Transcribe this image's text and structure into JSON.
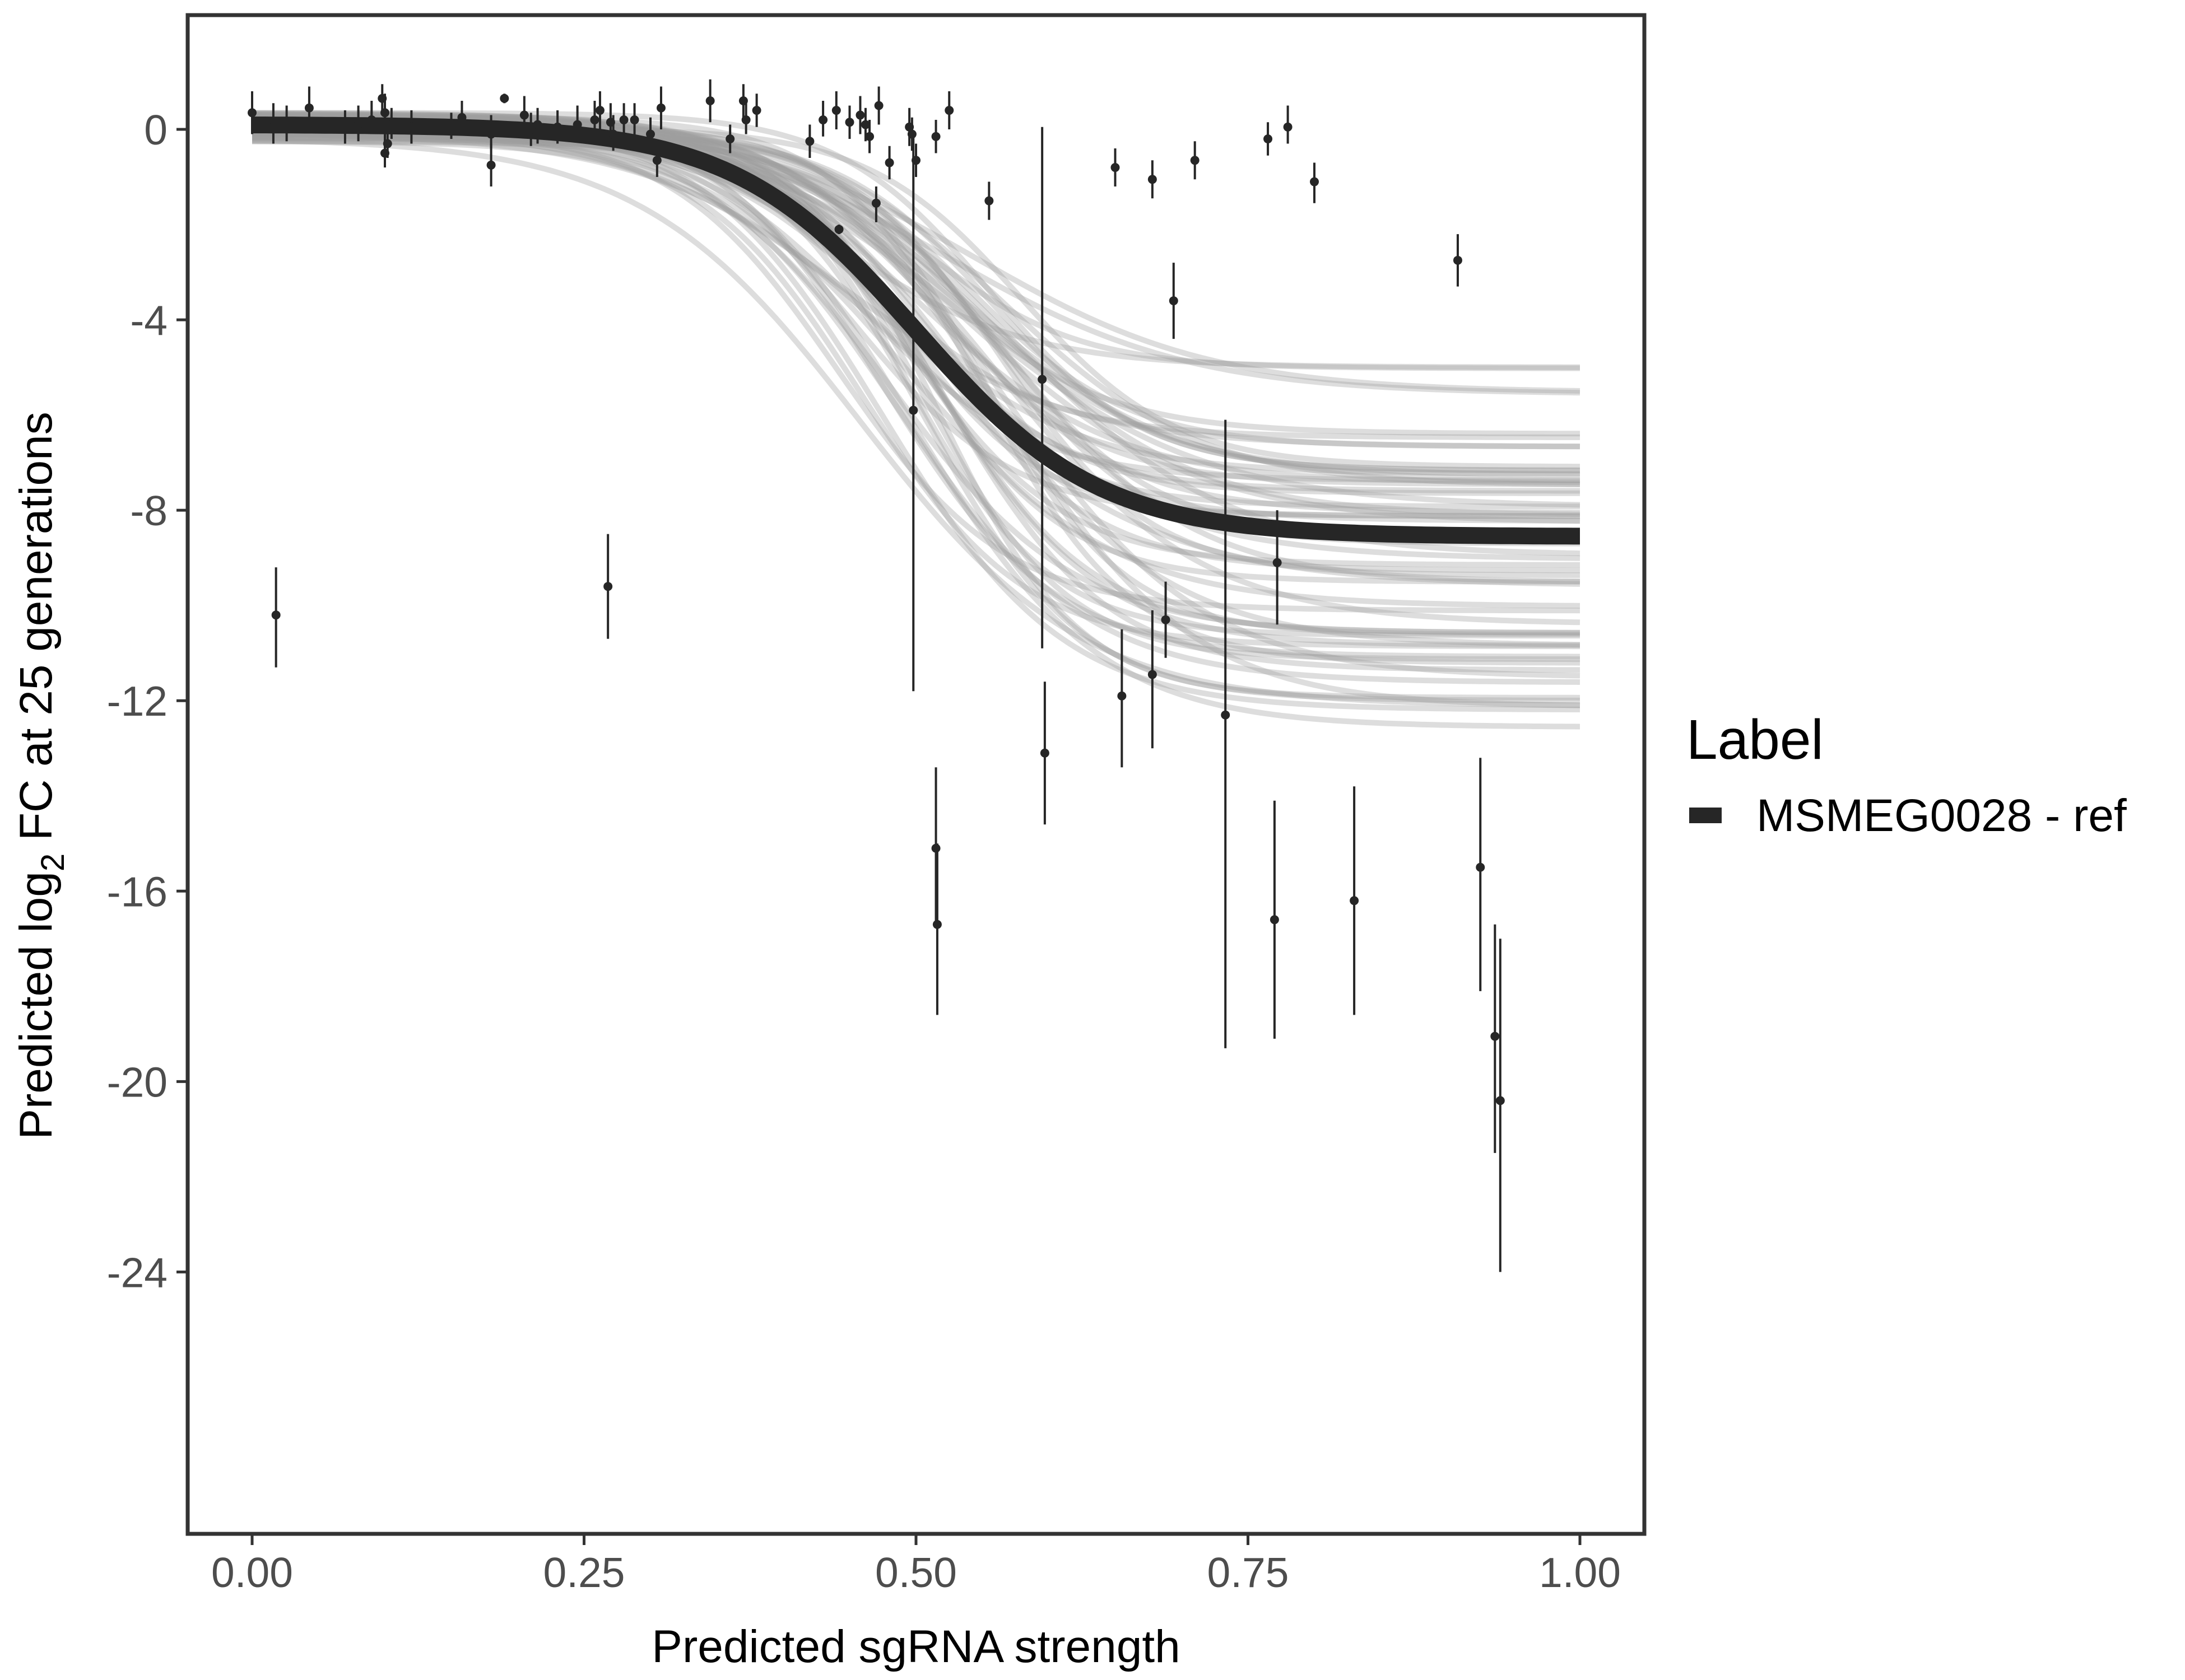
{
  "chart_data": {
    "type": "scatter",
    "xlabel": "Predicted sgRNA strength",
    "ylabel_parts": {
      "prefix": "Predicted  log",
      "subscript": "2",
      "suffix": " FC at 25 generations"
    },
    "xlim": [
      0,
      1
    ],
    "ylim": [
      -29.5,
      2.4
    ],
    "x_ticks": [
      "0.00",
      "0.25",
      "0.50",
      "0.75",
      "1.00"
    ],
    "y_ticks": [
      "0",
      "-4",
      "-8",
      "-12",
      "-16",
      "-20",
      "-24"
    ],
    "grid": false,
    "legend": {
      "title": "Label",
      "entries": [
        "MSMEG0028 - ref"
      ],
      "position": "right"
    },
    "fit_curve": {
      "name": "MSMEG0028 - ref",
      "upper": 0.1,
      "lower": -8.55,
      "midpoint": 0.5,
      "steepness": 14.5,
      "x_range": [
        0,
        1
      ]
    },
    "posterior_draws": {
      "count": 60,
      "lower_range": [
        -12.9,
        -4.8
      ],
      "midpoint_range": [
        0.44,
        0.58
      ],
      "steepness_range": [
        11,
        19
      ],
      "color": "#9e9e9e"
    },
    "points": [
      {
        "x": 0.0,
        "y": 0.35,
        "ylow": -0.1,
        "yhigh": 0.8
      },
      {
        "x": 0.016,
        "y": 0.05,
        "ylow": -0.3,
        "yhigh": 0.55
      },
      {
        "x": 0.018,
        "y": -10.2,
        "ylow": -11.3,
        "yhigh": -9.2
      },
      {
        "x": 0.026,
        "y": 0.1,
        "ylow": -0.25,
        "yhigh": 0.5
      },
      {
        "x": 0.043,
        "y": 0.45,
        "ylow": 0.1,
        "yhigh": 0.9
      },
      {
        "x": 0.07,
        "y": 0.05,
        "ylow": -0.3,
        "yhigh": 0.4
      },
      {
        "x": 0.08,
        "y": 0.1,
        "ylow": -0.25,
        "yhigh": 0.5
      },
      {
        "x": 0.09,
        "y": 0.2,
        "ylow": -0.1,
        "yhigh": 0.6
      },
      {
        "x": 0.098,
        "y": 0.65,
        "ylow": 0.35,
        "yhigh": 0.95
      },
      {
        "x": 0.1,
        "y": -0.5,
        "ylow": -0.8,
        "yhigh": -0.1
      },
      {
        "x": 0.1,
        "y": 0.35,
        "ylow": 0.0,
        "yhigh": 0.75
      },
      {
        "x": 0.102,
        "y": -0.3,
        "ylow": -0.6,
        "yhigh": 0.0
      },
      {
        "x": 0.105,
        "y": 0.1,
        "ylow": -0.2,
        "yhigh": 0.45
      },
      {
        "x": 0.12,
        "y": 0.05,
        "ylow": -0.3,
        "yhigh": 0.4
      },
      {
        "x": 0.15,
        "y": 0.05,
        "ylow": -0.2,
        "yhigh": 0.35
      },
      {
        "x": 0.158,
        "y": 0.25,
        "ylow": -0.1,
        "yhigh": 0.6
      },
      {
        "x": 0.18,
        "y": -0.75,
        "ylow": -1.2,
        "yhigh": -0.3
      },
      {
        "x": 0.18,
        "y": -0.1,
        "ylow": -0.4,
        "yhigh": 0.3
      },
      {
        "x": 0.19,
        "y": 0.65,
        "ylow": 0.55,
        "yhigh": 0.75
      },
      {
        "x": 0.205,
        "y": 0.3,
        "ylow": -0.1,
        "yhigh": 0.7
      },
      {
        "x": 0.21,
        "y": 0.0,
        "ylow": -0.35,
        "yhigh": 0.35
      },
      {
        "x": 0.215,
        "y": 0.1,
        "ylow": -0.3,
        "yhigh": 0.45
      },
      {
        "x": 0.23,
        "y": 0.05,
        "ylow": -0.3,
        "yhigh": 0.4
      },
      {
        "x": 0.245,
        "y": 0.1,
        "ylow": -0.2,
        "yhigh": 0.5
      },
      {
        "x": 0.258,
        "y": 0.2,
        "ylow": -0.1,
        "yhigh": 0.6
      },
      {
        "x": 0.262,
        "y": 0.4,
        "ylow": 0.0,
        "yhigh": 0.8
      },
      {
        "x": 0.268,
        "y": -9.6,
        "ylow": -10.7,
        "yhigh": -8.5
      },
      {
        "x": 0.27,
        "y": 0.15,
        "ylow": -0.25,
        "yhigh": 0.55
      },
      {
        "x": 0.272,
        "y": -0.1,
        "ylow": -0.45,
        "yhigh": 0.3
      },
      {
        "x": 0.28,
        "y": 0.2,
        "ylow": -0.15,
        "yhigh": 0.55
      },
      {
        "x": 0.288,
        "y": 0.2,
        "ylow": -0.15,
        "yhigh": 0.55
      },
      {
        "x": 0.3,
        "y": -0.1,
        "ylow": -0.45,
        "yhigh": 0.25
      },
      {
        "x": 0.305,
        "y": -0.65,
        "ylow": -1.0,
        "yhigh": -0.3
      },
      {
        "x": 0.308,
        "y": 0.45,
        "ylow": 0.0,
        "yhigh": 0.9
      },
      {
        "x": 0.345,
        "y": 0.6,
        "ylow": 0.15,
        "yhigh": 1.05
      },
      {
        "x": 0.36,
        "y": -0.2,
        "ylow": -0.5,
        "yhigh": 0.1
      },
      {
        "x": 0.37,
        "y": 0.6,
        "ylow": 0.25,
        "yhigh": 0.95
      },
      {
        "x": 0.372,
        "y": 0.2,
        "ylow": -0.1,
        "yhigh": 0.55
      },
      {
        "x": 0.38,
        "y": 0.4,
        "ylow": 0.05,
        "yhigh": 0.75
      },
      {
        "x": 0.42,
        "y": -0.25,
        "ylow": -0.6,
        "yhigh": 0.1
      },
      {
        "x": 0.43,
        "y": 0.2,
        "ylow": -0.15,
        "yhigh": 0.6
      },
      {
        "x": 0.44,
        "y": 0.4,
        "ylow": 0.0,
        "yhigh": 0.8
      },
      {
        "x": 0.442,
        "y": -2.1,
        "ylow": -2.2,
        "yhigh": -2.0
      },
      {
        "x": 0.45,
        "y": 0.15,
        "ylow": -0.2,
        "yhigh": 0.5
      },
      {
        "x": 0.458,
        "y": 0.3,
        "ylow": -0.1,
        "yhigh": 0.7
      },
      {
        "x": 0.462,
        "y": 0.1,
        "ylow": -0.25,
        "yhigh": 0.45
      },
      {
        "x": 0.465,
        "y": -0.15,
        "ylow": -0.5,
        "yhigh": 0.2
      },
      {
        "x": 0.47,
        "y": -1.55,
        "ylow": -1.95,
        "yhigh": -1.2
      },
      {
        "x": 0.472,
        "y": 0.5,
        "ylow": 0.1,
        "yhigh": 0.9
      },
      {
        "x": 0.48,
        "y": -0.7,
        "ylow": -1.05,
        "yhigh": -0.35
      },
      {
        "x": 0.495,
        "y": 0.05,
        "ylow": -0.35,
        "yhigh": 0.45
      },
      {
        "x": 0.497,
        "y": -0.1,
        "ylow": -0.45,
        "yhigh": 0.25
      },
      {
        "x": 0.498,
        "y": -5.9,
        "ylow": -11.8,
        "yhigh": -0.1
      },
      {
        "x": 0.5,
        "y": -0.65,
        "ylow": -1.0,
        "yhigh": -0.3
      },
      {
        "x": 0.515,
        "y": -0.15,
        "ylow": -0.5,
        "yhigh": 0.2
      },
      {
        "x": 0.515,
        "y": -15.1,
        "ylow": -16.7,
        "yhigh": -13.4
      },
      {
        "x": 0.516,
        "y": -16.7,
        "ylow": -18.6,
        "yhigh": -15.0
      },
      {
        "x": 0.525,
        "y": 0.4,
        "ylow": 0.0,
        "yhigh": 0.8
      },
      {
        "x": 0.555,
        "y": -1.5,
        "ylow": -1.9,
        "yhigh": -1.1
      },
      {
        "x": 0.595,
        "y": -5.25,
        "ylow": -10.9,
        "yhigh": 0.05
      },
      {
        "x": 0.597,
        "y": -13.1,
        "ylow": -14.6,
        "yhigh": -11.6
      },
      {
        "x": 0.65,
        "y": -0.8,
        "ylow": -1.2,
        "yhigh": -0.4
      },
      {
        "x": 0.655,
        "y": -11.9,
        "ylow": -13.4,
        "yhigh": -10.5
      },
      {
        "x": 0.678,
        "y": -1.05,
        "ylow": -1.45,
        "yhigh": -0.65
      },
      {
        "x": 0.678,
        "y": -11.45,
        "ylow": -13.0,
        "yhigh": -10.1
      },
      {
        "x": 0.688,
        "y": -10.3,
        "ylow": -11.1,
        "yhigh": -9.5
      },
      {
        "x": 0.694,
        "y": -3.6,
        "ylow": -4.4,
        "yhigh": -2.8
      },
      {
        "x": 0.71,
        "y": -0.65,
        "ylow": -1.05,
        "yhigh": -0.25
      },
      {
        "x": 0.733,
        "y": -12.3,
        "ylow": -19.3,
        "yhigh": -6.1
      },
      {
        "x": 0.765,
        "y": -0.2,
        "ylow": -0.55,
        "yhigh": 0.15
      },
      {
        "x": 0.77,
        "y": -16.6,
        "ylow": -19.1,
        "yhigh": -14.1
      },
      {
        "x": 0.772,
        "y": -9.1,
        "ylow": -10.4,
        "yhigh": -8.0
      },
      {
        "x": 0.78,
        "y": 0.05,
        "ylow": -0.3,
        "yhigh": 0.5
      },
      {
        "x": 0.8,
        "y": -1.1,
        "ylow": -1.55,
        "yhigh": -0.7
      },
      {
        "x": 0.83,
        "y": -16.2,
        "ylow": -18.6,
        "yhigh": -13.8
      },
      {
        "x": 0.908,
        "y": -2.75,
        "ylow": -3.3,
        "yhigh": -2.2
      },
      {
        "x": 0.925,
        "y": -15.5,
        "ylow": -18.1,
        "yhigh": -13.2
      },
      {
        "x": 0.936,
        "y": -19.05,
        "ylow": -21.5,
        "yhigh": -16.7
      },
      {
        "x": 0.94,
        "y": -20.4,
        "ylow": -24.0,
        "yhigh": -17.0
      }
    ]
  }
}
